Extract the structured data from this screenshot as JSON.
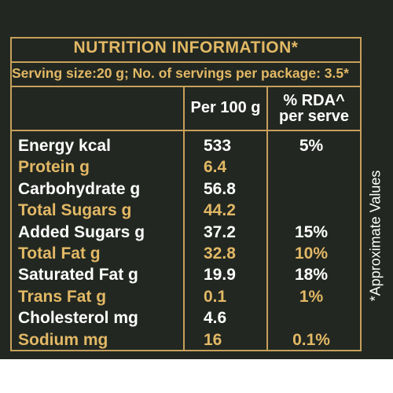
{
  "title": "NUTRITION INFORMATION*",
  "serving_line": "Serving size:20 g; No. of servings per package: 3.5*",
  "headers": {
    "per100": "Per 100 g",
    "rda_line1": "% RDA^",
    "rda_line2": "per serve"
  },
  "rows": [
    {
      "name": "Energy kcal",
      "per100": "533",
      "rda": "5%",
      "highlight": false
    },
    {
      "name": "Protein g",
      "per100": "6.4",
      "rda": "",
      "highlight": true
    },
    {
      "name": "Carbohydrate g",
      "per100": "56.8",
      "rda": "",
      "highlight": false
    },
    {
      "name": "Total Sugars g",
      "per100": "44.2",
      "rda": "",
      "highlight": true
    },
    {
      "name": "Added Sugars g",
      "per100": "37.2",
      "rda": "15%",
      "highlight": false
    },
    {
      "name": "Total Fat g",
      "per100": "32.8",
      "rda": "10%",
      "highlight": true
    },
    {
      "name": "Saturated Fat g",
      "per100": "19.9",
      "rda": "18%",
      "highlight": false
    },
    {
      "name": "Trans Fat g",
      "per100": "0.1",
      "rda": "1%",
      "highlight": true
    },
    {
      "name": "Cholesterol mg",
      "per100": "4.6",
      "rda": "",
      "highlight": false
    },
    {
      "name": "Sodium mg",
      "per100": "16",
      "rda": "0.1%",
      "highlight": true
    }
  ],
  "side_note": "*Approximate Values",
  "colors": {
    "background": "#222721",
    "accent_gold": "#e2b865",
    "border_gold": "#c7a05b",
    "text_white": "#ffffff"
  }
}
